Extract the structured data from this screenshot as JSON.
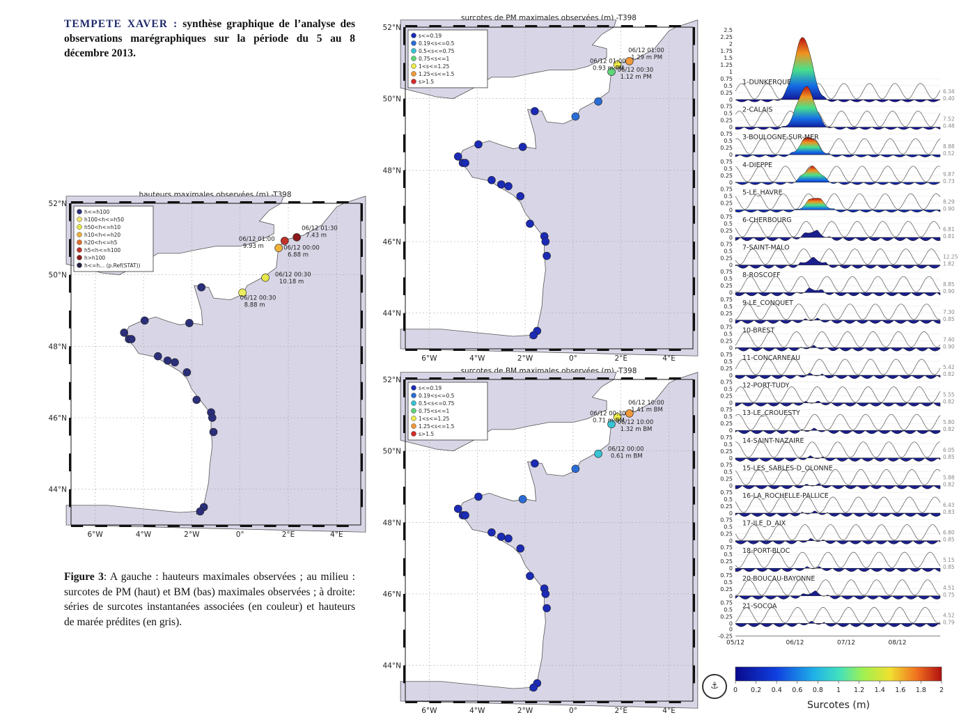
{
  "title": {
    "lead": "TEMPETE XAVER :",
    "rest": " synthèse graphique de l’analyse des observations marégraphiques sur la période du 5 au 8 décembre 2013."
  },
  "caption": {
    "lead": "Figure 3",
    "rest": ": A gauche : hauteurs maximales observées ; au milieu : surcotes de PM (haut) et BM (bas) maximales observées ; à droite: séries de surcotes instantanées associées (en couleur) et hauteurs de marée prédites (en gris)."
  },
  "maps": {
    "left": {
      "title": "hauteurs maximales observées (m) -T398",
      "legend": [
        "h<=h100",
        "h100<h<=h50",
        "h50<h<=h10",
        "h10<h<=h20",
        "h20<h<=h5",
        "h5<h<=h100",
        "h>h100",
        "h<=h... (p.Ref(STAT))"
      ],
      "legend_colors": [
        "#2b2f7a",
        "#f2e36b",
        "#e8e84a",
        "#f0b23a",
        "#e0702a",
        "#c0332a",
        "#8c1a1a",
        "#222244"
      ],
      "annotations": [
        {
          "date": "06/12 01:00",
          "value": "9.93 m"
        },
        {
          "date": "06/12 01:30",
          "value": "7.43 m"
        },
        {
          "date": "06/12 00:00",
          "value": "6.88 m"
        },
        {
          "date": "06/12 00:30",
          "value": "10.18 m"
        },
        {
          "date": "06/12 00:30",
          "value": "8.88 m"
        }
      ],
      "lat_labels": [
        "52°N",
        "50°N",
        "48°N",
        "46°N",
        "44°N"
      ],
      "lon_labels": [
        "6°W",
        "4°W",
        "2°W",
        "0°",
        "2°E",
        "4°E"
      ]
    },
    "pm": {
      "title": "surcotes de PM maximales observées (m) -T398",
      "legend": [
        "s<=0.19",
        "0.19<s<=0.5",
        "0.5<s<=0.75",
        "0.75<s<=1",
        "1<s<=1.25",
        "1.25<s<=1.5",
        "s>1.5"
      ],
      "legend_colors": [
        "#1b2bb5",
        "#2a6cd6",
        "#38c4d4",
        "#5fd47a",
        "#ecec4a",
        "#f09a3a",
        "#d42a2a"
      ],
      "annotations": [
        {
          "date": "06/12 01:00",
          "value": "1.29 m PM"
        },
        {
          "date": "06/12 01:00",
          "value": "0.93 m PM"
        },
        {
          "date": "06/12 00:30",
          "value": "1.12 m PM"
        }
      ],
      "lat_labels": [
        "52°N",
        "50°N",
        "48°N",
        "46°N",
        "44°N"
      ],
      "lon_labels": [
        "6°W",
        "4°W",
        "2°W",
        "0°",
        "2°E",
        "4°E"
      ]
    },
    "bm": {
      "title": "surcotes de BM maximales observées (m) -T398",
      "legend": [
        "s<=0.19",
        "0.19<s<=0.5",
        "0.5<s<=0.75",
        "0.75<s<=1",
        "1<s<=1.25",
        "1.25<s<=1.5",
        "s>1.5"
      ],
      "legend_colors": [
        "#1b2bb5",
        "#2a6cd6",
        "#38c4d4",
        "#5fd47a",
        "#ecec4a",
        "#f09a3a",
        "#d42a2a"
      ],
      "annotations": [
        {
          "date": "06/12 10:00",
          "value": "1.41 m BM"
        },
        {
          "date": "06/12 00:30",
          "value": "0.71 m BM"
        },
        {
          "date": "06/12 10:00",
          "value": "1.32 m BM"
        },
        {
          "date": "06/12 00:00",
          "value": "0.61 m BM"
        }
      ],
      "lat_labels": [
        "52°N",
        "50°N",
        "48°N",
        "46°N",
        "44°N"
      ],
      "lon_labels": [
        "6°W",
        "4°W",
        "2°W",
        "0°",
        "2°E",
        "4°E"
      ]
    }
  },
  "chart_data": {
    "type": "area",
    "xlabel": "",
    "x_ticks": [
      "05/12",
      "06/12",
      "07/12",
      "08/12"
    ],
    "colorbar": {
      "label": "Surcotes (m)",
      "ticks": [
        "0",
        "0.2",
        "0.4",
        "0.6",
        "0.8",
        "1",
        "1.2",
        "1.4",
        "1.6",
        "1.8",
        "2"
      ],
      "range": [
        0,
        2
      ]
    },
    "y_ticks_top": [
      "2.5",
      "2.25",
      "2",
      "1.75",
      "1.5",
      "1.25",
      "1",
      "0.75",
      "0.5",
      "0.25",
      "0"
    ],
    "y_ticks_per_station": [
      "0.75",
      "0.5",
      "0.25",
      "0"
    ],
    "y_ticks_bottom": [
      "0",
      "-0.25"
    ],
    "stations": [
      {
        "name": "1-DUNKERQUE",
        "max_surge": 2.3,
        "right": [
          "6.34",
          "0.40"
        ]
      },
      {
        "name": "2-CALAIS",
        "max_surge": 1.5,
        "right": [
          "7.52",
          "0.48"
        ]
      },
      {
        "name": "3-BOULOGNE-SUR-MER",
        "max_surge": 0.7,
        "right": [
          "8.88",
          "0.52"
        ]
      },
      {
        "name": "4-DIEPPE",
        "max_surge": 0.6,
        "right": [
          "9.87",
          "0.73"
        ]
      },
      {
        "name": "5-LE_HAVRE",
        "max_surge": 0.5,
        "right": [
          "8.29",
          "0.90"
        ]
      },
      {
        "name": "6-CHERBOURG",
        "max_surge": 0.3,
        "right": [
          "6.81",
          "0.81"
        ]
      },
      {
        "name": "7-SAINT-MALO",
        "max_surge": 0.3,
        "right": [
          "12.25",
          "1.82"
        ]
      },
      {
        "name": "8-ROSCOFF",
        "max_surge": 0.2,
        "right": [
          "8.85",
          "0.90"
        ]
      },
      {
        "name": "9-LE_CONQUET",
        "max_surge": 0.1,
        "right": [
          "7.30",
          "0.85"
        ]
      },
      {
        "name": "10-BREST",
        "max_surge": 0.1,
        "right": [
          "7.40",
          "0.90"
        ]
      },
      {
        "name": "11-CONCARNEAU",
        "max_surge": 0.1,
        "right": [
          "5.42",
          "0.82"
        ]
      },
      {
        "name": "12-PORT-TUDY",
        "max_surge": 0.1,
        "right": [
          "5.55",
          "0.82"
        ]
      },
      {
        "name": "13-LE_CROUESTY",
        "max_surge": 0.1,
        "right": [
          "5.80",
          "0.82"
        ]
      },
      {
        "name": "14-SAINT-NAZAIRE",
        "max_surge": 0.1,
        "right": [
          "6.05",
          "0.85"
        ]
      },
      {
        "name": "15-LES_SABLES-D_OLONNE",
        "max_surge": 0.1,
        "right": [
          "5.88",
          "0.82"
        ]
      },
      {
        "name": "16-LA_ROCHELLE-PALLICE",
        "max_surge": 0.1,
        "right": [
          "6.43",
          "0.83"
        ]
      },
      {
        "name": "17-ILE_D_AIX",
        "max_surge": 0.1,
        "right": [
          "6.80",
          "0.85"
        ]
      },
      {
        "name": "18-PORT-BLOC",
        "max_surge": 0.1,
        "right": [
          "5.15",
          "0.85"
        ]
      },
      {
        "name": "20-BOUCAU-BAYONNE",
        "max_surge": 0.2,
        "right": [
          "4.51",
          "0.75"
        ]
      },
      {
        "name": "21-SOCOA",
        "max_surge": 0.1,
        "right": [
          "4.52",
          "0.79"
        ]
      }
    ]
  }
}
